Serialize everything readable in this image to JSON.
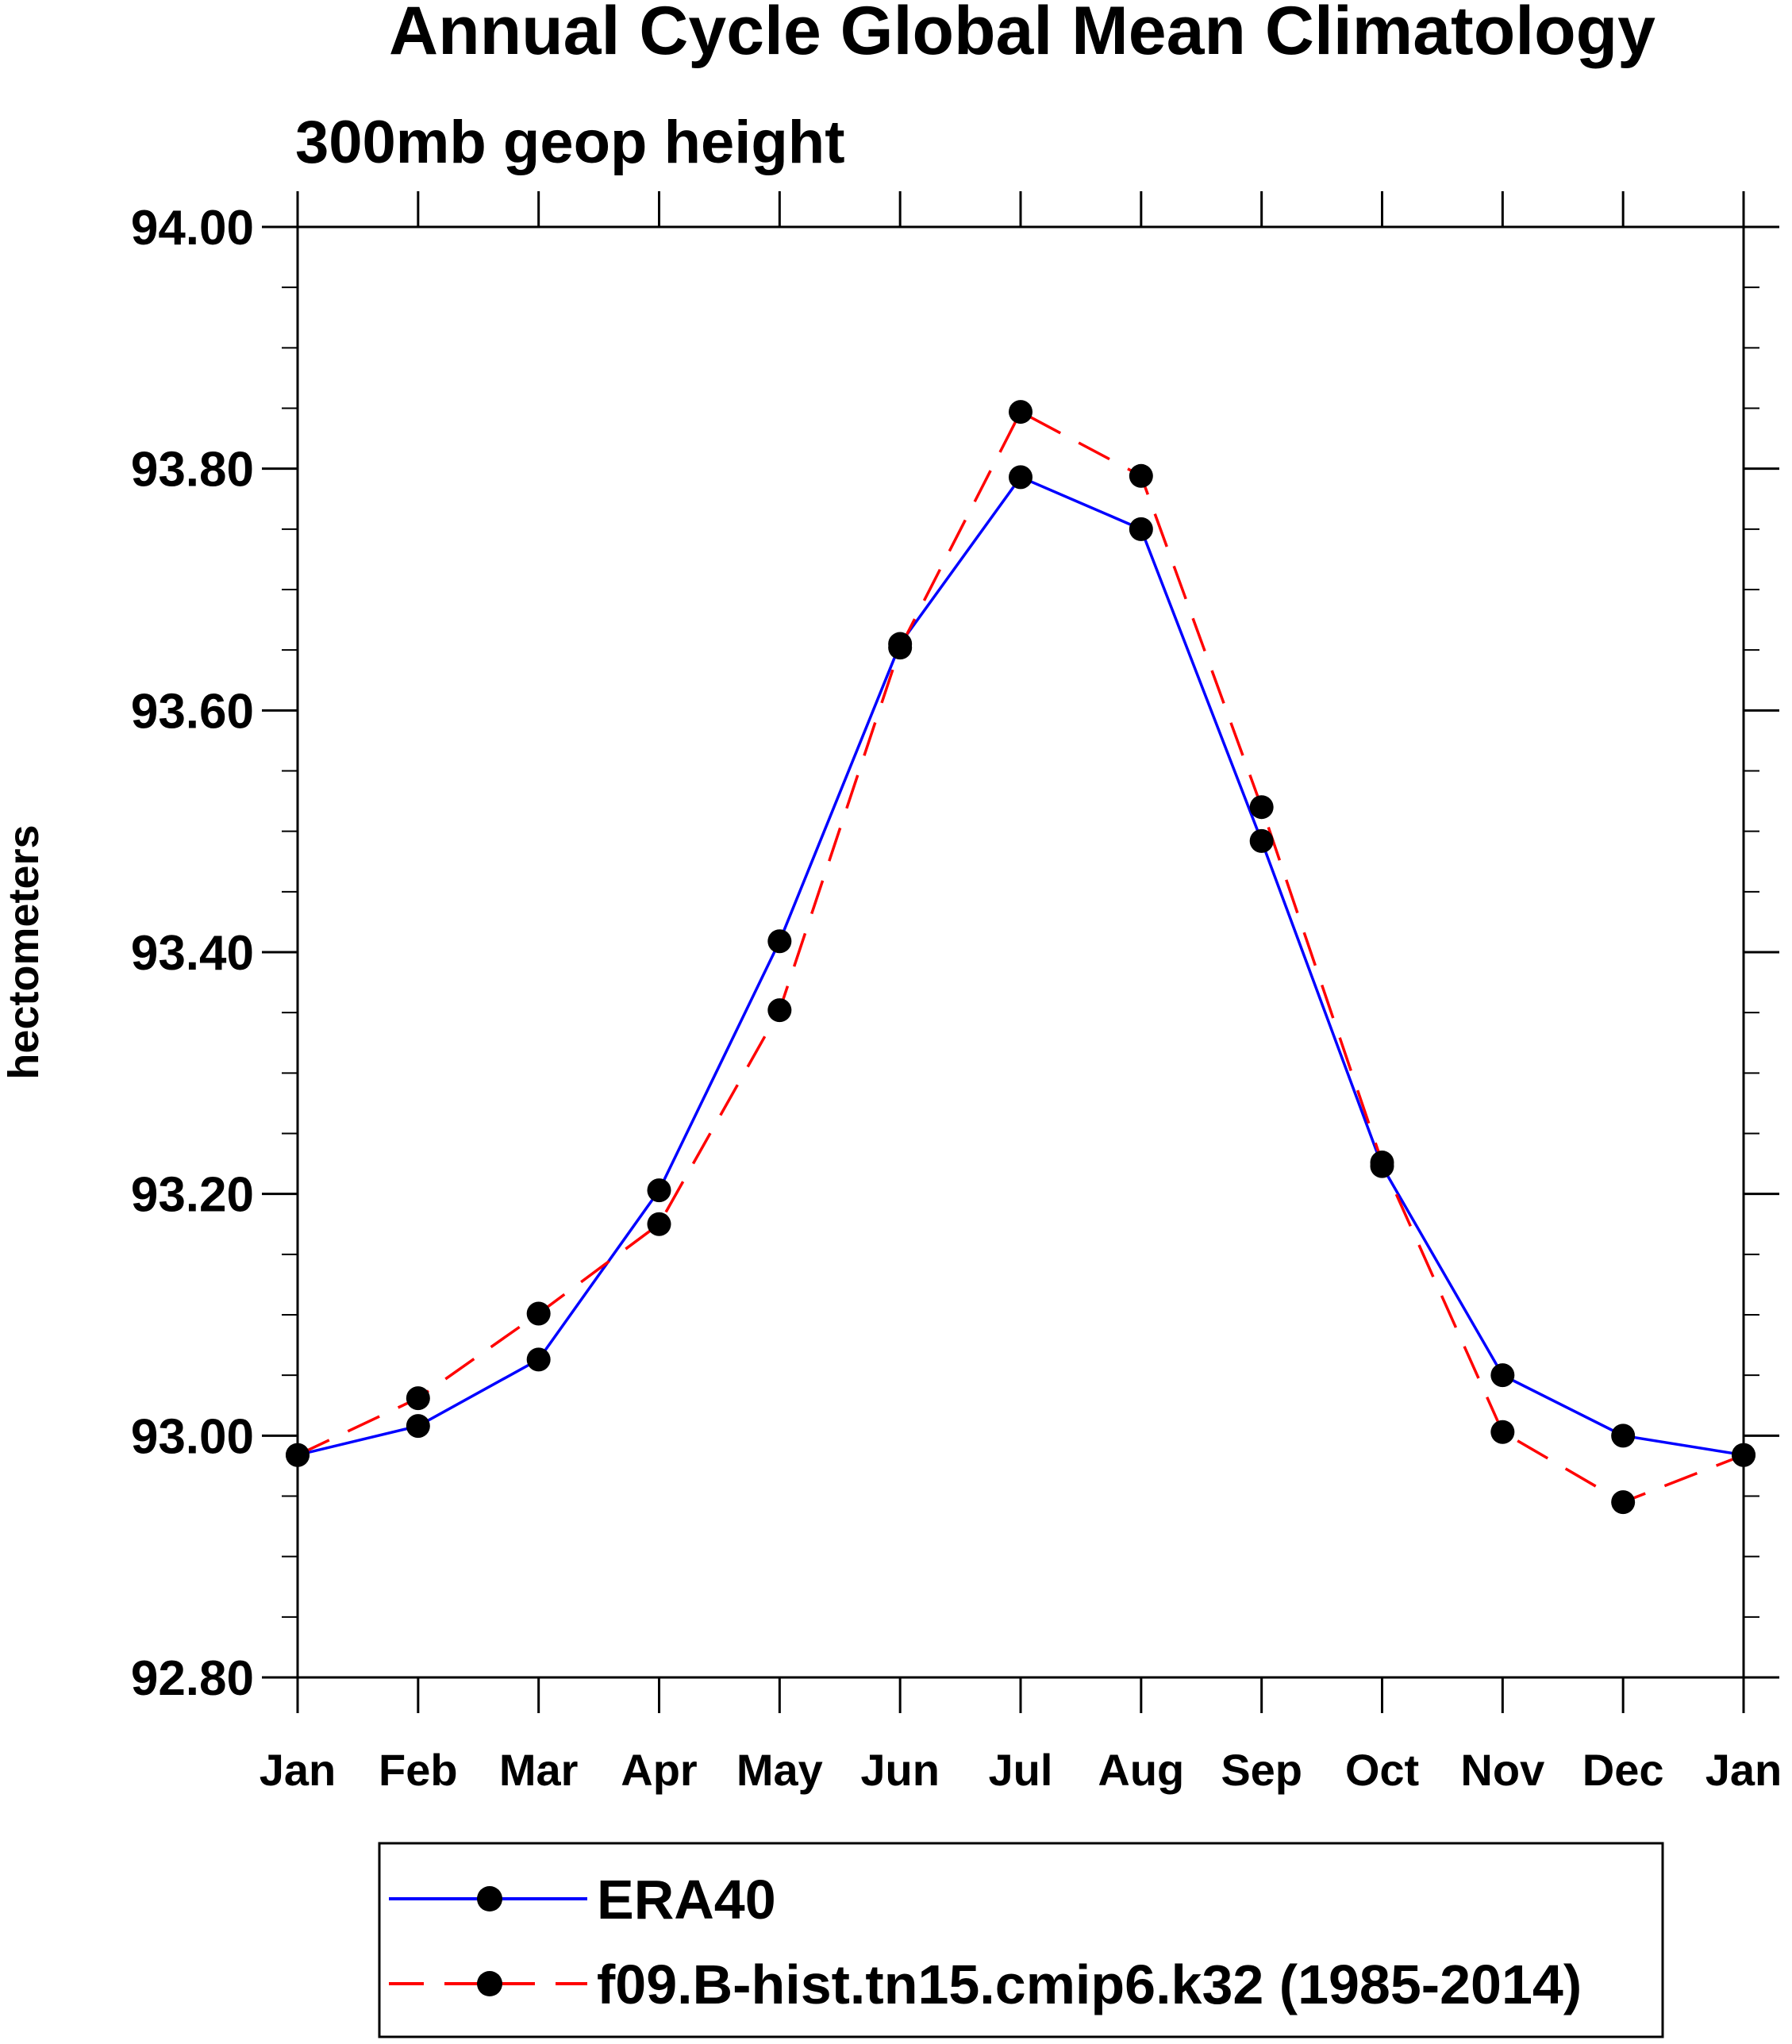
{
  "chart_data": {
    "type": "line",
    "title": "Annual Cycle Global Mean Climatology",
    "subtitle": "300mb geop height",
    "ylabel": "hectometers",
    "xlabel": "",
    "ylim": [
      92.8,
      94.0
    ],
    "y_ticks": [
      "94.00",
      "93.80",
      "93.60",
      "93.40",
      "93.20",
      "93.00",
      "92.80"
    ],
    "y_tick_values": [
      94.0,
      93.8,
      93.6,
      93.4,
      93.2,
      93.0,
      92.8
    ],
    "y_minor_step": 0.05,
    "categories": [
      "Jan",
      "Feb",
      "Mar",
      "Apr",
      "May",
      "Jun",
      "Jul",
      "Aug",
      "Sep",
      "Oct",
      "Nov",
      "Dec",
      "Jan"
    ],
    "series": [
      {
        "name": "ERA40",
        "color": "#0000ff",
        "dash": "solid",
        "values": [
          92.984,
          93.008,
          93.063,
          93.203,
          93.409,
          93.655,
          93.793,
          93.75,
          93.492,
          93.223,
          93.05,
          93.0,
          92.984
        ]
      },
      {
        "name": "f09.B-hist.tn15.cmip6.k32 (1985-2014)",
        "color": "#ff0000",
        "dash": "dashed",
        "values": [
          92.984,
          93.031,
          93.101,
          93.175,
          93.352,
          93.652,
          93.847,
          93.794,
          93.52,
          93.226,
          93.003,
          92.945,
          92.984
        ]
      }
    ],
    "marker": "filled-circle",
    "marker_color": "#000000",
    "legend_position": "bottom-center"
  }
}
